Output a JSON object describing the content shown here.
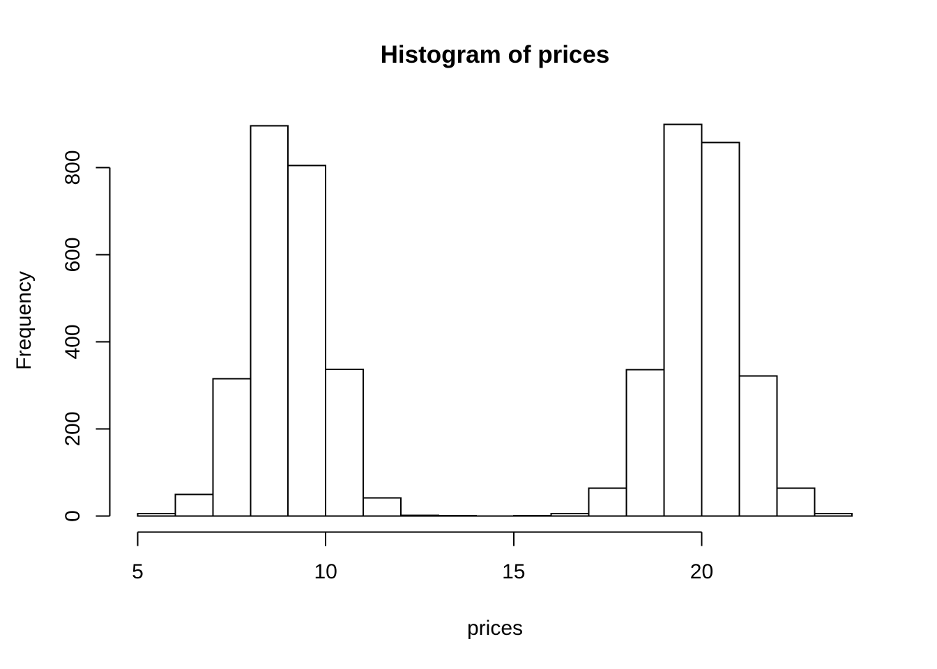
{
  "chart_data": {
    "type": "bar",
    "variant": "histogram",
    "title": "Histogram of prices",
    "xlabel": "prices",
    "ylabel": "Frequency",
    "breaks": [
      5,
      6,
      7,
      8,
      9,
      10,
      11,
      12,
      13,
      14,
      15,
      16,
      17,
      18,
      19,
      20,
      21,
      22,
      23,
      24
    ],
    "counts": [
      6,
      50,
      315,
      896,
      805,
      337,
      42,
      2,
      1,
      0,
      1,
      6,
      64,
      336,
      899,
      858,
      322,
      64,
      6
    ],
    "x_ticks": [
      5,
      10,
      15,
      20
    ],
    "x_tick_labels": [
      "5",
      "10",
      "15",
      "20"
    ],
    "y_ticks": [
      0,
      200,
      400,
      600,
      800
    ],
    "y_tick_labels": [
      "0",
      "200",
      "400",
      "600",
      "800"
    ],
    "xlim": [
      5,
      24
    ],
    "ylim": [
      0,
      900
    ],
    "grid": "off",
    "legend": "none",
    "bar_fill_color": "#ffffff",
    "bar_stroke_color": "#000000",
    "axis_color": "#000000",
    "background_color": "#ffffff"
  }
}
